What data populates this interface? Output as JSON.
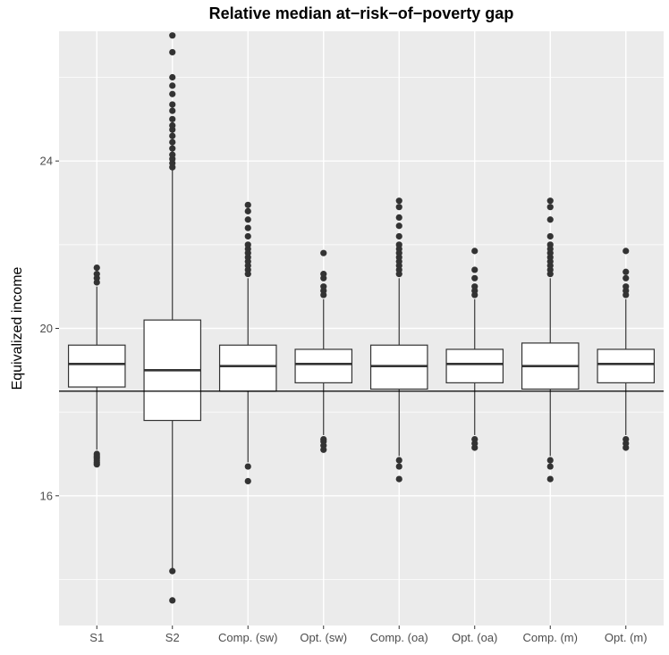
{
  "chart_data": {
    "type": "boxplot",
    "title": "Relative median at−risk−of−poverty gap",
    "xlabel": "",
    "ylabel": "Equivalized income",
    "ylim": [
      12.9,
      27.1
    ],
    "yticks": [
      16,
      20,
      24
    ],
    "ytick_labels": [
      "16",
      "20",
      "24"
    ],
    "reference_line_y": 18.5,
    "grid": true,
    "colors": {
      "panel": "#ebebeb",
      "grid": "#ffffff",
      "box_fill": "#ffffff",
      "stroke": "#333333"
    },
    "categories": [
      "S1",
      "S2",
      "Comp. (sw)",
      "Opt. (sw)",
      "Comp. (oa)",
      "Opt. (oa)",
      "Comp. (m)",
      "Opt. (m)"
    ],
    "boxes": [
      {
        "whisker_low": 17.1,
        "q1": 18.6,
        "median": 19.15,
        "q3": 19.6,
        "whisker_high": 21.0,
        "outliers": [
          16.75,
          16.8,
          16.85,
          16.9,
          16.95,
          17.0,
          21.1,
          21.2,
          21.3,
          21.45
        ]
      },
      {
        "whisker_low": 14.2,
        "q1": 17.8,
        "median": 19.0,
        "q3": 20.2,
        "whisker_high": 23.8,
        "outliers": [
          13.5,
          14.2,
          23.85,
          23.95,
          24.05,
          24.15,
          24.3,
          24.45,
          24.6,
          24.75,
          24.85,
          25.0,
          25.2,
          25.35,
          25.6,
          25.8,
          26.0,
          26.6,
          27.0
        ]
      },
      {
        "whisker_low": 16.8,
        "q1": 18.5,
        "median": 19.1,
        "q3": 19.6,
        "whisker_high": 21.2,
        "outliers": [
          16.35,
          16.7,
          21.3,
          21.4,
          21.5,
          21.6,
          21.7,
          21.8,
          21.9,
          22.0,
          22.2,
          22.4,
          22.6,
          22.8,
          22.95
        ]
      },
      {
        "whisker_low": 17.45,
        "q1": 18.7,
        "median": 19.15,
        "q3": 19.5,
        "whisker_high": 20.7,
        "outliers": [
          17.1,
          17.2,
          17.3,
          17.35,
          20.8,
          20.9,
          21.0,
          21.2,
          21.3,
          21.8
        ]
      },
      {
        "whisker_low": 16.95,
        "q1": 18.55,
        "median": 19.1,
        "q3": 19.6,
        "whisker_high": 21.2,
        "outliers": [
          16.4,
          16.7,
          16.85,
          21.3,
          21.4,
          21.5,
          21.6,
          21.7,
          21.8,
          21.9,
          22.0,
          22.2,
          22.45,
          22.65,
          22.9,
          23.05
        ]
      },
      {
        "whisker_low": 17.45,
        "q1": 18.7,
        "median": 19.15,
        "q3": 19.5,
        "whisker_high": 20.7,
        "outliers": [
          17.15,
          17.25,
          17.35,
          20.8,
          20.9,
          21.0,
          21.2,
          21.4,
          21.85
        ]
      },
      {
        "whisker_low": 16.95,
        "q1": 18.55,
        "median": 19.1,
        "q3": 19.65,
        "whisker_high": 21.2,
        "outliers": [
          16.4,
          16.7,
          16.85,
          21.3,
          21.4,
          21.5,
          21.6,
          21.7,
          21.8,
          21.9,
          22.0,
          22.2,
          22.6,
          22.9,
          23.05
        ]
      },
      {
        "whisker_low": 17.45,
        "q1": 18.7,
        "median": 19.15,
        "q3": 19.5,
        "whisker_high": 20.7,
        "outliers": [
          17.15,
          17.25,
          17.35,
          20.8,
          20.9,
          21.0,
          21.2,
          21.35,
          21.85
        ]
      }
    ]
  }
}
